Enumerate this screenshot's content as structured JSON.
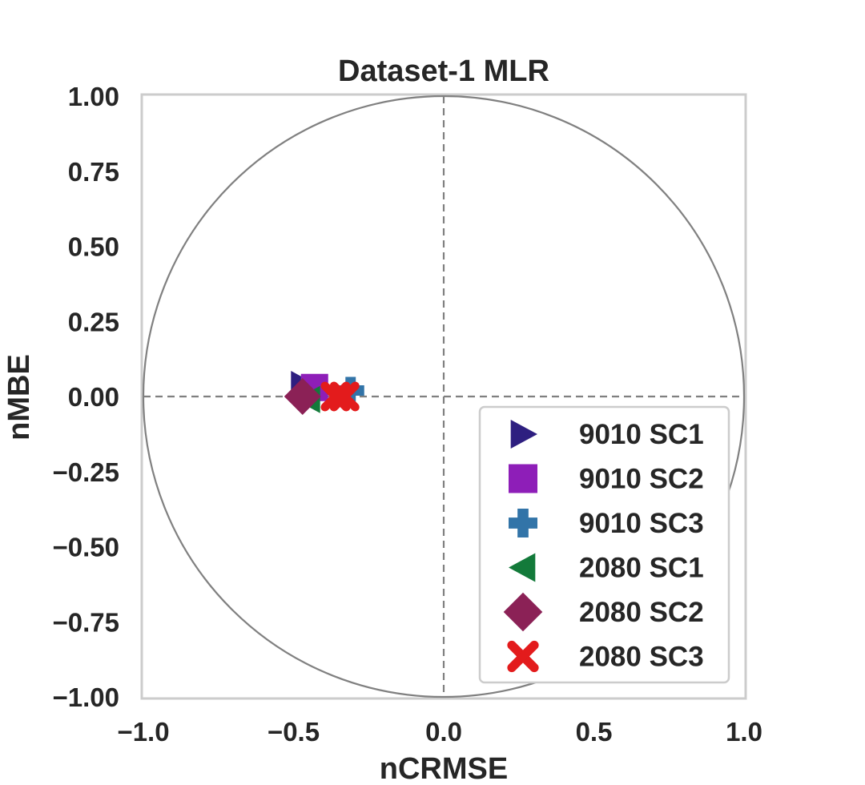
{
  "chart_data": {
    "type": "scatter",
    "title": "Dataset-1 MLR",
    "xlabel": "nCRMSE",
    "ylabel": "nMBE",
    "xlim": [
      -1.0,
      1.0
    ],
    "ylim": [
      -1.0,
      1.0
    ],
    "x_ticks": [
      "−1.0",
      "−0.5",
      "0.0",
      "0.5",
      "1.0"
    ],
    "y_ticks": [
      "1.00",
      "0.75",
      "0.50",
      "0.25",
      "0.00",
      "−0.25",
      "−0.50",
      "−0.75",
      "−1.00"
    ],
    "grid": false,
    "reference_circle_radius": 1.0,
    "reference_lines": "dashed lines at x=0 and y=0",
    "legend_position": "lower-right",
    "series": [
      {
        "name": "9010 SC1",
        "marker": "triangle-right",
        "color": "#2e1f80",
        "x": [
          -0.47
        ],
        "y": [
          0.04
        ]
      },
      {
        "name": "9010 SC2",
        "marker": "square",
        "color": "#8e1eb8",
        "x": [
          -0.43
        ],
        "y": [
          0.03
        ]
      },
      {
        "name": "9010 SC3",
        "marker": "plus",
        "color": "#3274a8",
        "x": [
          -0.31
        ],
        "y": [
          0.02
        ]
      },
      {
        "name": "2080 SC1",
        "marker": "triangle-left",
        "color": "#137a3a",
        "x": [
          -0.45
        ],
        "y": [
          -0.01
        ]
      },
      {
        "name": "2080 SC2",
        "marker": "diamond",
        "color": "#8b2156",
        "x": [
          -0.47
        ],
        "y": [
          0.0
        ]
      },
      {
        "name": "2080 SC3",
        "marker": "x",
        "color": "#e31b1c",
        "x": [
          -0.36,
          -0.33
        ],
        "y": [
          0.0,
          0.0
        ]
      }
    ]
  }
}
